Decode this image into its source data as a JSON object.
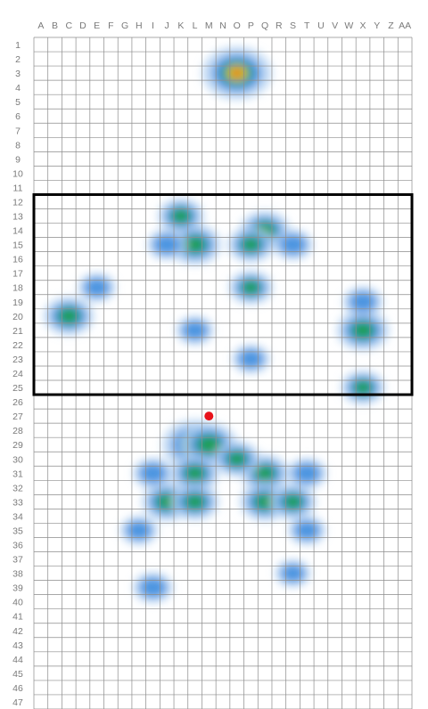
{
  "chart_data": {
    "type": "heatmap",
    "columns": [
      "A",
      "B",
      "C",
      "D",
      "E",
      "F",
      "G",
      "H",
      "I",
      "J",
      "K",
      "L",
      "M",
      "N",
      "O",
      "P",
      "Q",
      "R",
      "S",
      "T",
      "U",
      "V",
      "W",
      "X",
      "Y",
      "Z",
      "AA"
    ],
    "rows": [
      "1",
      "2",
      "3",
      "4",
      "5",
      "6",
      "7",
      "8",
      "9",
      "10",
      "11",
      "12",
      "13",
      "14",
      "15",
      "16",
      "17",
      "18",
      "19",
      "20",
      "21",
      "22",
      "23",
      "24",
      "25",
      "26",
      "27",
      "28",
      "29",
      "30",
      "31",
      "32",
      "33",
      "34",
      "35",
      "36",
      "37",
      "38",
      "39",
      "40",
      "41",
      "42",
      "43",
      "44",
      "45",
      "46",
      "47"
    ],
    "highlight_box": {
      "row_start": "12",
      "row_end": "25",
      "col_start": "A",
      "col_end": "AA"
    },
    "marker": {
      "row": "27",
      "col": "M",
      "color": "#e8131b"
    },
    "hotspots": [
      {
        "col": "O",
        "row": "3",
        "intensity": 1.0
      },
      {
        "col": "L",
        "row": "15",
        "intensity": 0.6
      },
      {
        "col": "K",
        "row": "13",
        "intensity": 0.45
      },
      {
        "col": "Q",
        "row": "14",
        "intensity": 0.55
      },
      {
        "col": "P",
        "row": "15",
        "intensity": 0.45
      },
      {
        "col": "P",
        "row": "18",
        "intensity": 0.4
      },
      {
        "col": "J",
        "row": "15",
        "intensity": 0.3
      },
      {
        "col": "S",
        "row": "15",
        "intensity": 0.3
      },
      {
        "col": "C",
        "row": "20",
        "intensity": 0.55
      },
      {
        "col": "X",
        "row": "21",
        "intensity": 0.6
      },
      {
        "col": "X",
        "row": "25",
        "intensity": 0.4
      },
      {
        "col": "X",
        "row": "19",
        "intensity": 0.3
      },
      {
        "col": "E",
        "row": "18",
        "intensity": 0.25
      },
      {
        "col": "L",
        "row": "21",
        "intensity": 0.25
      },
      {
        "col": "P",
        "row": "23",
        "intensity": 0.25
      },
      {
        "col": "L",
        "row": "29",
        "intensity": 0.9
      },
      {
        "col": "M",
        "row": "29",
        "intensity": 0.7
      },
      {
        "col": "L",
        "row": "31",
        "intensity": 0.5
      },
      {
        "col": "Q",
        "row": "31",
        "intensity": 0.5
      },
      {
        "col": "O",
        "row": "30",
        "intensity": 0.45
      },
      {
        "col": "J",
        "row": "33",
        "intensity": 0.55
      },
      {
        "col": "L",
        "row": "33",
        "intensity": 0.5
      },
      {
        "col": "Q",
        "row": "33",
        "intensity": 0.55
      },
      {
        "col": "S",
        "row": "33",
        "intensity": 0.45
      },
      {
        "col": "I",
        "row": "31",
        "intensity": 0.3
      },
      {
        "col": "T",
        "row": "31",
        "intensity": 0.3
      },
      {
        "col": "H",
        "row": "35",
        "intensity": 0.25
      },
      {
        "col": "T",
        "row": "35",
        "intensity": 0.25
      },
      {
        "col": "I",
        "row": "39",
        "intensity": 0.3
      },
      {
        "col": "S",
        "row": "38",
        "intensity": 0.2
      }
    ],
    "colorscale": [
      "#b7d4f2",
      "#3f8fe0",
      "#1f9e55",
      "#e8e21c",
      "#e8131b"
    ]
  }
}
